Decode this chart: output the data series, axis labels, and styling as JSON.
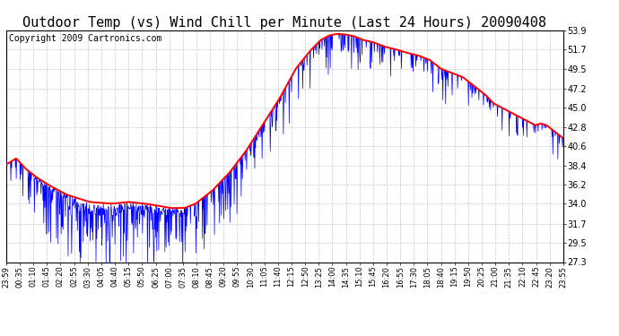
{
  "title": "Outdoor Temp (vs) Wind Chill per Minute (Last 24 Hours) 20090408",
  "copyright": "Copyright 2009 Cartronics.com",
  "yticks": [
    27.3,
    29.5,
    31.7,
    34.0,
    36.2,
    38.4,
    40.6,
    42.8,
    45.0,
    47.2,
    49.5,
    51.7,
    53.9
  ],
  "ylim": [
    27.3,
    53.9
  ],
  "xtick_labels": [
    "23:59",
    "00:35",
    "01:10",
    "01:45",
    "02:20",
    "02:55",
    "03:30",
    "04:05",
    "04:40",
    "05:15",
    "05:50",
    "06:25",
    "07:00",
    "07:35",
    "08:10",
    "08:45",
    "09:20",
    "09:55",
    "10:30",
    "11:05",
    "11:40",
    "12:15",
    "12:50",
    "13:25",
    "14:00",
    "14:35",
    "15:10",
    "15:45",
    "16:20",
    "16:55",
    "17:30",
    "18:05",
    "18:40",
    "19:15",
    "19:50",
    "20:25",
    "21:00",
    "21:35",
    "22:10",
    "22:45",
    "23:20",
    "23:55"
  ],
  "red_line_color": "#ff0000",
  "blue_line_color": "#0000ff",
  "background_color": "#ffffff",
  "grid_color": "#c8c8c8",
  "title_fontsize": 11,
  "copyright_fontsize": 7,
  "fig_width": 6.9,
  "fig_height": 3.75,
  "dpi": 100
}
